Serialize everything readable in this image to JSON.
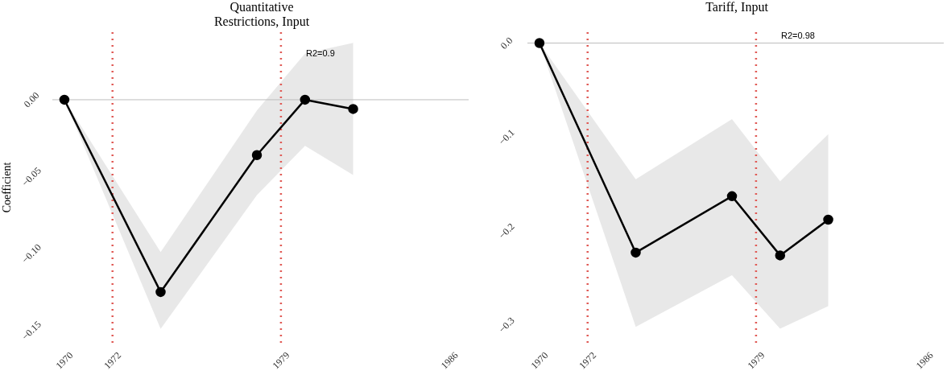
{
  "chart_data": [
    {
      "type": "line",
      "title": "Quantitative\nRestrictions, Input",
      "ylabel": "Coefficient",
      "x": [
        1970,
        1974,
        1978,
        1980,
        1982
      ],
      "series": [
        {
          "color": "#000000",
          "values": [
            0,
            -0.125,
            -0.036,
            0,
            -0.006
          ],
          "lower": [
            0,
            -0.149,
            -0.062,
            -0.03,
            -0.049
          ],
          "upper": [
            0,
            -0.099,
            -0.007,
            0.03,
            0.037
          ]
        }
      ],
      "xlim": [
        1969.5,
        1986.8
      ],
      "xticks": [
        1970,
        1972,
        1979,
        1986
      ],
      "ylim": [
        -0.158,
        0.046
      ],
      "yticks": [
        {
          "value": 0,
          "label": "0.00"
        },
        {
          "value": -0.05,
          "label": "−0.05"
        },
        {
          "value": -0.1,
          "label": "−0.10"
        },
        {
          "value": -0.15,
          "label": "−0.15"
        }
      ],
      "ref_lines": [
        {
          "axis": "y",
          "value": 0,
          "color": "#bdbdbd",
          "line_style": "solid"
        },
        {
          "axis": "x",
          "value": 1972,
          "color": "#e05a55",
          "line_style": "dotted"
        },
        {
          "axis": "x",
          "value": 1979,
          "color": "#e05a55",
          "line_style": "dotted"
        }
      ],
      "annotations": [
        "R2=0.9"
      ],
      "marker": "circle",
      "line_style": "solid",
      "grid": false,
      "legend": false
    },
    {
      "type": "line",
      "title": "Tariff, Input",
      "x": [
        1970,
        1974,
        1978,
        1980,
        1982
      ],
      "series": [
        {
          "color": "#000000",
          "values": [
            0,
            -0.223,
            -0.163,
            -0.226,
            -0.188
          ],
          "lower": [
            0,
            -0.302,
            -0.247,
            -0.304,
            -0.28
          ],
          "upper": [
            0,
            -0.145,
            -0.081,
            -0.147,
            -0.097
          ]
        }
      ],
      "xlim": [
        1969.5,
        1986.8
      ],
      "xticks": [
        1970,
        1972,
        1979,
        1986
      ],
      "ylim": [
        -0.319,
        0.015
      ],
      "yticks": [
        {
          "value": 0,
          "label": "0.0"
        },
        {
          "value": -0.1,
          "label": "−0.1"
        },
        {
          "value": -0.2,
          "label": "−0.2"
        },
        {
          "value": -0.3,
          "label": "−0.3"
        }
      ],
      "ref_lines": [
        {
          "axis": "y",
          "value": 0,
          "color": "#bdbdbd",
          "line_style": "solid"
        },
        {
          "axis": "x",
          "value": 1972,
          "color": "#e05a55",
          "line_style": "dotted"
        },
        {
          "axis": "x",
          "value": 1979,
          "color": "#e05a55",
          "line_style": "dotted"
        }
      ],
      "annotations": [
        "R2=0.98"
      ],
      "marker": "circle",
      "line_style": "solid",
      "grid": false,
      "legend": false
    }
  ]
}
